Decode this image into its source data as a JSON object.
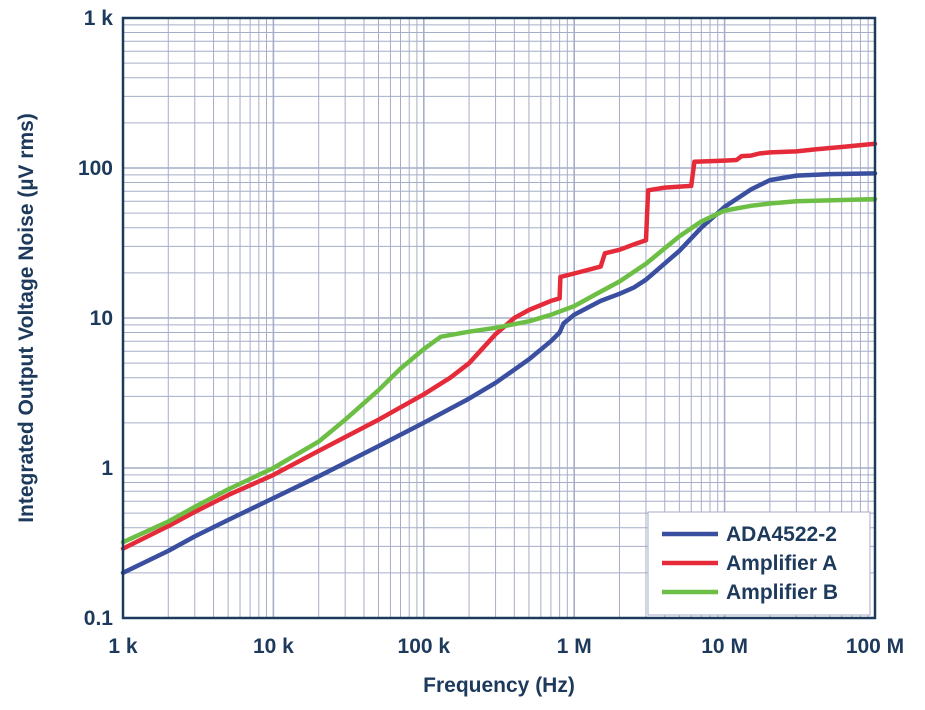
{
  "chart_data": {
    "type": "line",
    "title": "",
    "xlabel": "Frequency (Hz)",
    "ylabel": "Integrated Output Voltage Noise (µV rms)",
    "xscale": "log",
    "yscale": "log",
    "xlim": [
      1000,
      100000000
    ],
    "ylim": [
      0.1,
      1000
    ],
    "grid": true,
    "legend_position": "bottom-right",
    "x_ticks": [
      {
        "value": 1000,
        "label": "1 k"
      },
      {
        "value": 10000,
        "label": "10 k"
      },
      {
        "value": 100000,
        "label": "100 k"
      },
      {
        "value": 1000000,
        "label": "1 M"
      },
      {
        "value": 10000000,
        "label": "10 M"
      },
      {
        "value": 100000000,
        "label": "100 M"
      }
    ],
    "y_ticks": [
      {
        "value": 0.1,
        "label": "0.1"
      },
      {
        "value": 1,
        "label": "1"
      },
      {
        "value": 10,
        "label": "10"
      },
      {
        "value": 100,
        "label": "100"
      },
      {
        "value": 1000,
        "label": "1 k"
      }
    ],
    "colors": {
      "grid": "#a6adc8",
      "frame": "#1d3a5c",
      "text": "#1d3a5c"
    },
    "series": [
      {
        "name": "ADA4522-2",
        "color": "#3a4fa0",
        "points": [
          [
            1000,
            0.2
          ],
          [
            2000,
            0.28
          ],
          [
            3000,
            0.35
          ],
          [
            5000,
            0.45
          ],
          [
            10000,
            0.63
          ],
          [
            20000,
            0.88
          ],
          [
            50000,
            1.4
          ],
          [
            100000,
            2.0
          ],
          [
            200000,
            2.9
          ],
          [
            300000,
            3.7
          ],
          [
            500000,
            5.3
          ],
          [
            700000,
            7.0
          ],
          [
            800000,
            8.0
          ],
          [
            850000,
            9.2
          ],
          [
            1000000,
            10.5
          ],
          [
            1500000,
            13.0
          ],
          [
            2000000,
            14.5
          ],
          [
            2500000,
            16.0
          ],
          [
            3000000,
            18.0
          ],
          [
            5000000,
            28.0
          ],
          [
            7000000,
            40.0
          ],
          [
            10000000,
            55.0
          ],
          [
            15000000,
            72.0
          ],
          [
            20000000,
            83.0
          ],
          [
            30000000,
            89.0
          ],
          [
            50000000,
            91.0
          ],
          [
            100000000,
            92.0
          ]
        ]
      },
      {
        "name": "Amplifier A",
        "color": "#e52b3a",
        "points": [
          [
            1000,
            0.29
          ],
          [
            2000,
            0.41
          ],
          [
            3000,
            0.51
          ],
          [
            5000,
            0.66
          ],
          [
            10000,
            0.9
          ],
          [
            20000,
            1.3
          ],
          [
            50000,
            2.1
          ],
          [
            100000,
            3.1
          ],
          [
            150000,
            4.0
          ],
          [
            200000,
            5.0
          ],
          [
            300000,
            7.8
          ],
          [
            400000,
            10.0
          ],
          [
            500000,
            11.3
          ],
          [
            700000,
            13.0
          ],
          [
            800000,
            13.5
          ],
          [
            810000,
            18.8
          ],
          [
            1000000,
            19.8
          ],
          [
            1500000,
            22.0
          ],
          [
            1600000,
            27.0
          ],
          [
            2000000,
            28.5
          ],
          [
            2500000,
            31.0
          ],
          [
            3000000,
            33.0
          ],
          [
            3100000,
            71.0
          ],
          [
            4000000,
            74.0
          ],
          [
            6000000,
            76.0
          ],
          [
            6300000,
            110.0
          ],
          [
            10000000,
            112.0
          ],
          [
            12000000,
            113.0
          ],
          [
            13000000,
            120.0
          ],
          [
            15000000,
            121.0
          ],
          [
            17000000,
            125.0
          ],
          [
            20000000,
            127.0
          ],
          [
            30000000,
            129.0
          ],
          [
            40000000,
            133.0
          ],
          [
            60000000,
            138.0
          ],
          [
            100000000,
            145.0
          ]
        ]
      },
      {
        "name": "Amplifier B",
        "color": "#6cbf44",
        "points": [
          [
            1000,
            0.32
          ],
          [
            2000,
            0.44
          ],
          [
            3000,
            0.55
          ],
          [
            5000,
            0.72
          ],
          [
            10000,
            1.0
          ],
          [
            20000,
            1.5
          ],
          [
            30000,
            2.1
          ],
          [
            50000,
            3.3
          ],
          [
            70000,
            4.6
          ],
          [
            100000,
            6.2
          ],
          [
            130000,
            7.5
          ],
          [
            200000,
            8.1
          ],
          [
            300000,
            8.6
          ],
          [
            500000,
            9.5
          ],
          [
            700000,
            10.5
          ],
          [
            1000000,
            12.0
          ],
          [
            1500000,
            15.0
          ],
          [
            2000000,
            17.5
          ],
          [
            3000000,
            23.0
          ],
          [
            5000000,
            35.0
          ],
          [
            7000000,
            44.0
          ],
          [
            10000000,
            52.0
          ],
          [
            15000000,
            56.0
          ],
          [
            20000000,
            58.0
          ],
          [
            30000000,
            60.0
          ],
          [
            100000000,
            62.0
          ]
        ]
      }
    ]
  }
}
